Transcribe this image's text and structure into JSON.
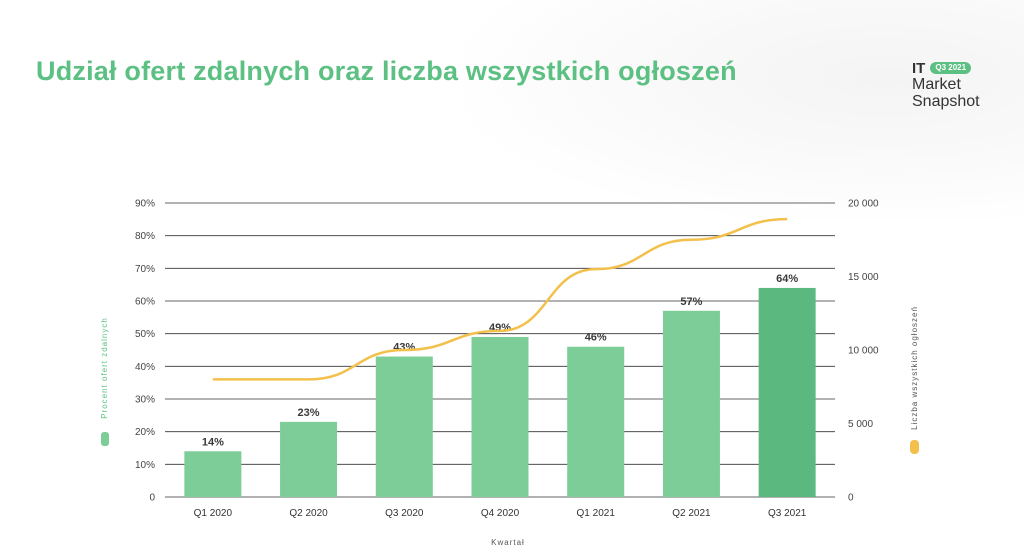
{
  "title": "Udział ofert zdalnych oraz liczba wszystkich ogłoszeń",
  "brand": {
    "it": "IT",
    "badge": "Q3 2021",
    "line2": "Market",
    "line3": "Snapshot"
  },
  "colors": {
    "bar": "#7ccd98",
    "bar_highlight": "#5bb980",
    "line": "#f2c04b",
    "title": "#5cc083",
    "grid": "#333333"
  },
  "chart_data": {
    "type": "bar",
    "title": "Udział ofert zdalnych oraz liczba wszystkich ogłoszeń",
    "categories": [
      "Q1 2020",
      "Q2 2020",
      "Q3 2020",
      "Q4 2020",
      "Q1 2021",
      "Q2 2021",
      "Q3 2021"
    ],
    "series": [
      {
        "name": "Procent ofert zdalnych",
        "type": "bar",
        "axis": "left",
        "values": [
          14,
          23,
          43,
          49,
          46,
          57,
          64
        ],
        "labels": [
          "14%",
          "23%",
          "43%",
          "49%",
          "46%",
          "57%",
          "64%"
        ]
      },
      {
        "name": "Liczba wszystkich ogłoszeń",
        "type": "line",
        "axis": "right",
        "values": [
          8000,
          8000,
          10000,
          11300,
          15500,
          17500,
          18900
        ]
      }
    ],
    "xlabel": "Kwartał",
    "ylabel": "Procent ofert zdalnych",
    "y2label": "Liczba wszystkich ogłoszeń",
    "ylim": [
      0,
      90
    ],
    "y2lim": [
      0,
      20000
    ],
    "yticks": [
      "0",
      "10%",
      "20%",
      "30%",
      "40%",
      "50%",
      "60%",
      "70%",
      "80%",
      "90%"
    ],
    "y2ticks": [
      "0",
      "5 000",
      "10 000",
      "15 000",
      "20 000"
    ],
    "y2tick_values": [
      0,
      5000,
      10000,
      15000,
      20000
    ],
    "grid": true
  }
}
